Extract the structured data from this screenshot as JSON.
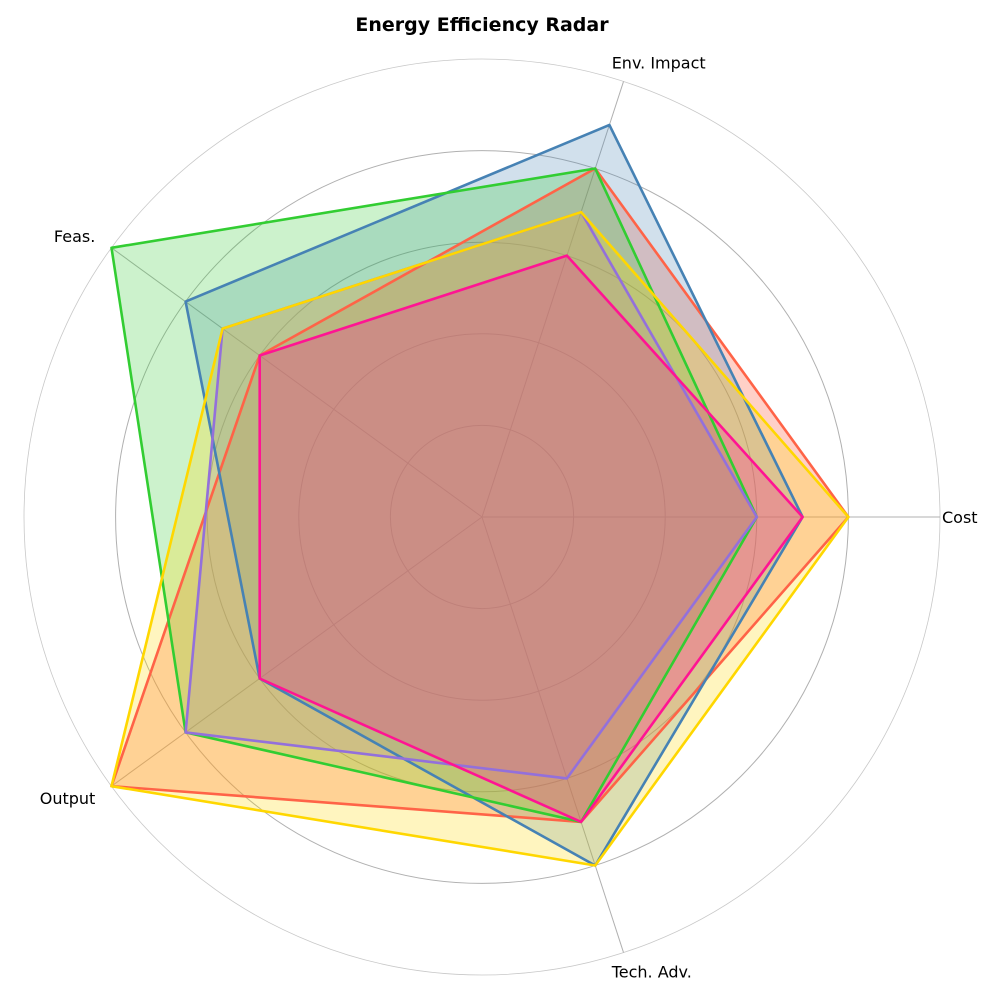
{
  "chart_data": {
    "type": "radar",
    "title": "Energy Efficiency Radar",
    "axes": [
      "Cost",
      "Env. Impact",
      "Feas.",
      "Output",
      "Tech. Adv."
    ],
    "rmax": 5,
    "ring_values": [
      1,
      2,
      3,
      4,
      5
    ],
    "grid": true,
    "legend": false,
    "series": [
      {
        "color": "#ff6347",
        "fill_opacity": 0.3,
        "values": [
          4,
          4,
          3,
          5,
          3.5
        ]
      },
      {
        "color": "#4682b4",
        "fill_opacity": 0.25,
        "values": [
          3.5,
          4.5,
          4,
          3,
          4
        ]
      },
      {
        "color": "#32cd32",
        "fill_opacity": 0.25,
        "values": [
          3,
          4,
          5,
          4,
          3.5
        ]
      },
      {
        "color": "#9370db",
        "fill_opacity": 0.25,
        "values": [
          3,
          3.5,
          3.5,
          4,
          3
        ]
      },
      {
        "color": "#ffd700",
        "fill_opacity": 0.25,
        "values": [
          4,
          3.5,
          3.5,
          5,
          4
        ]
      },
      {
        "color": "#ff1493",
        "fill_opacity": 0.25,
        "values": [
          3.5,
          3,
          3,
          3,
          3.5
        ]
      }
    ]
  }
}
